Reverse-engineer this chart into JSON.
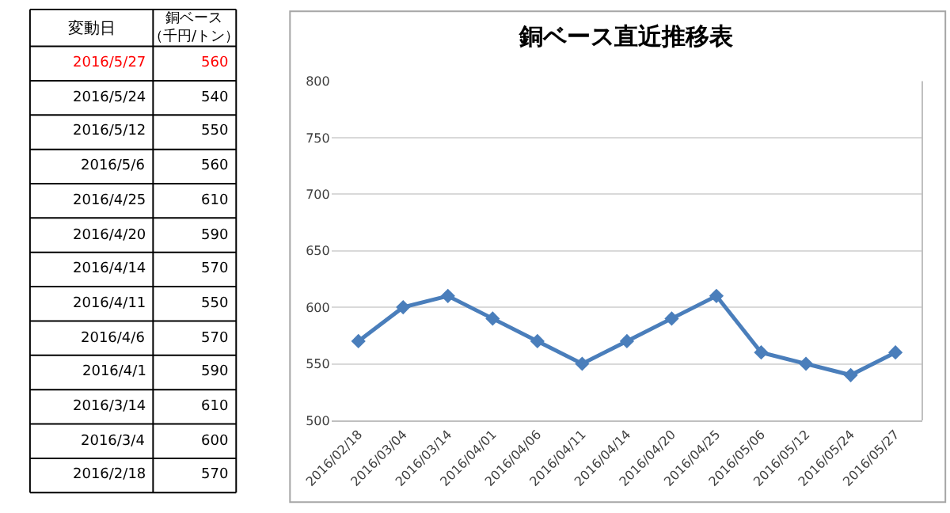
{
  "chart_data": {
    "type": "line",
    "title": "銅ベース直近推移表",
    "categories": [
      "2016/02/18",
      "2016/03/04",
      "2016/03/14",
      "2016/04/01",
      "2016/04/06",
      "2016/04/11",
      "2016/04/14",
      "2016/04/20",
      "2016/04/25",
      "2016/05/06",
      "2016/05/12",
      "2016/05/24",
      "2016/05/27"
    ],
    "series": [
      {
        "color": "#4a7ebb",
        "values": [
          570,
          600,
          610,
          590,
          570,
          550,
          570,
          590,
          610,
          560,
          550,
          540,
          560
        ]
      }
    ],
    "annotations": [
      "変動日",
      "銅ベース（千円/トン）",
      "2016/5/27",
      "560",
      "2016/5/24",
      "540",
      "2016/5/12",
      "550",
      "2016/5/6",
      "560",
      "2016/4/25",
      "610",
      "2016/4/20",
      "590",
      "2016/4/14",
      "570",
      "2016/4/11",
      "550",
      "2016/4/6",
      "570",
      "2016/4/1",
      "590",
      "2016/3/14",
      "610",
      "2016/3/4",
      "600",
      "2016/2/18",
      "570"
    ],
    "ylim": [
      500,
      800
    ],
    "yticks": [
      500,
      550,
      600,
      650,
      700,
      750,
      800
    ],
    "grid": "y",
    "marker": "diamond",
    "line_style": "solid"
  }
}
